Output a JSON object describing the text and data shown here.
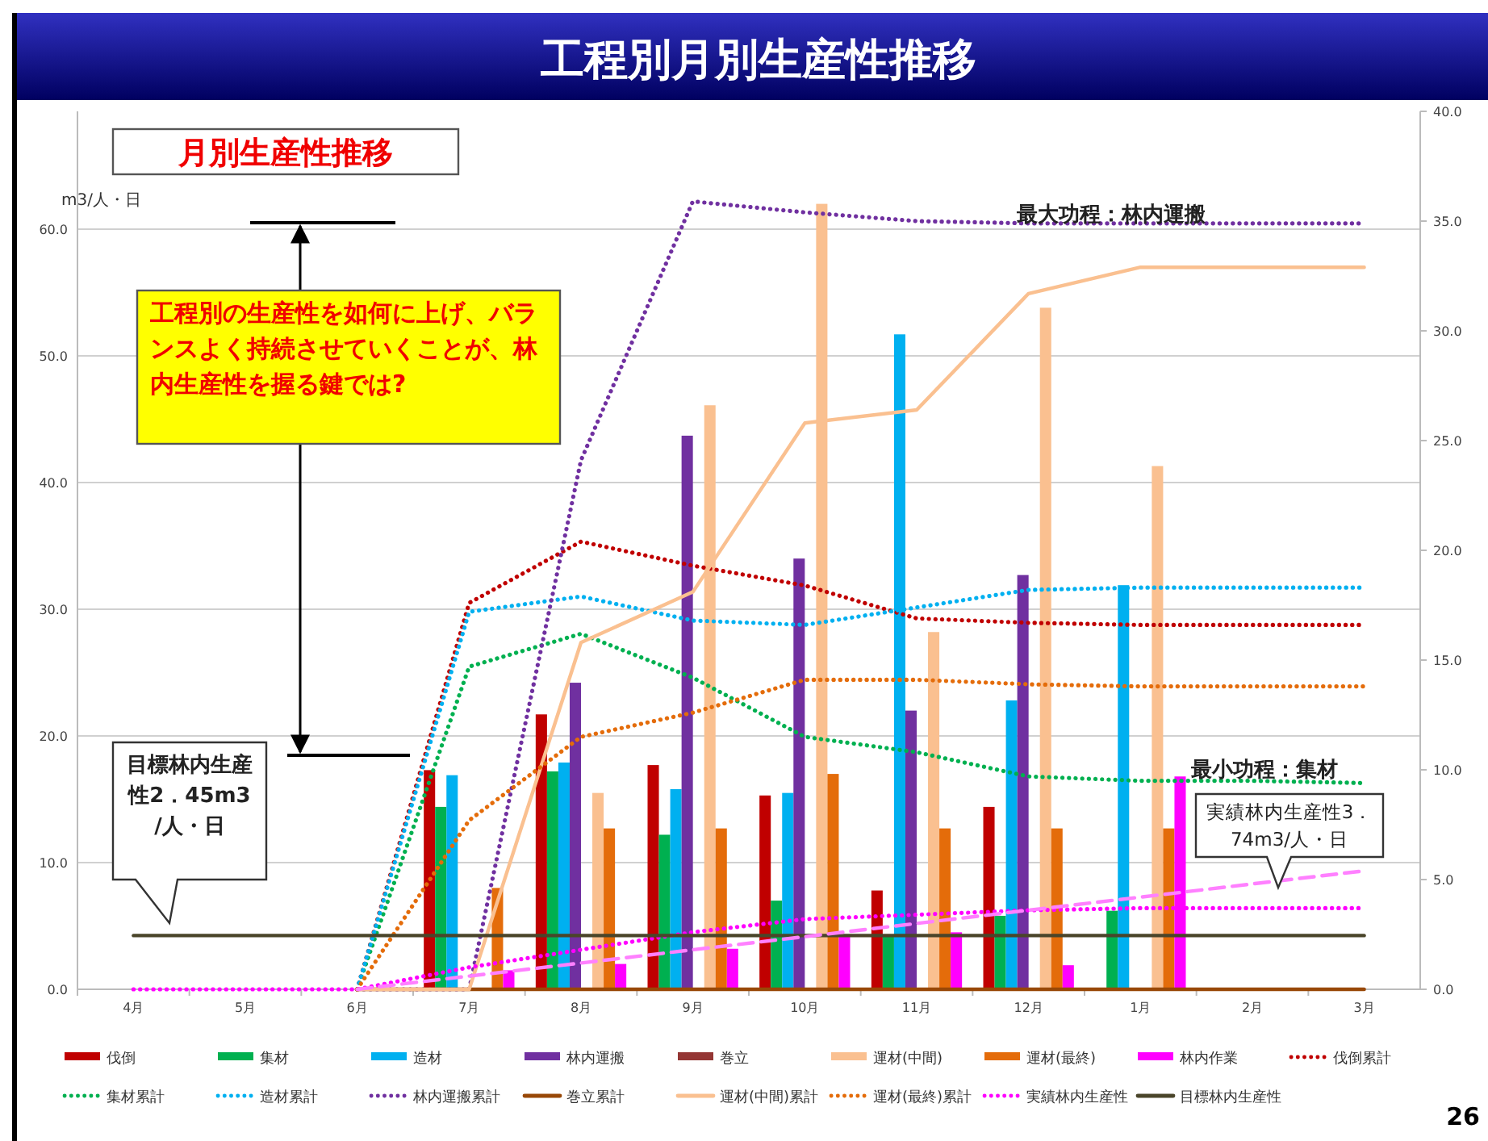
{
  "chart_data": {
    "type": "bar",
    "title": "工程別月別生産性推移",
    "subtitle": "月別生産性推移",
    "ylabel": "m3/人・日",
    "categories": [
      "4月",
      "5月",
      "6月",
      "7月",
      "8月",
      "9月",
      "10月",
      "11月",
      "12月",
      "1月",
      "2月",
      "3月"
    ],
    "ylim": [
      0,
      69.3
    ],
    "yticks": [
      {
        "value": 0,
        "label": "0.0"
      },
      {
        "value": 10,
        "label": "10.0"
      },
      {
        "value": 20,
        "label": "20.0"
      },
      {
        "value": 30,
        "label": "30.0"
      },
      {
        "value": 40,
        "label": "40.0"
      },
      {
        "value": 50,
        "label": "50.0"
      },
      {
        "value": 60,
        "label": "60.0"
      }
    ],
    "y2lim": [
      0,
      40
    ],
    "y2ticks": [
      {
        "value": 0,
        "label": "0.0"
      },
      {
        "value": 5,
        "label": "5.0"
      },
      {
        "value": 10,
        "label": "10.0"
      },
      {
        "value": 15,
        "label": "15.0"
      },
      {
        "value": 20,
        "label": "20.0"
      },
      {
        "value": 25,
        "label": "25.0"
      },
      {
        "value": 30,
        "label": "30.0"
      },
      {
        "value": 35,
        "label": "35.0"
      },
      {
        "value": 40,
        "label": "40.0"
      }
    ],
    "grid": "y",
    "legend": "bottom",
    "series": [
      {
        "name": "伐倒",
        "color": "#c00000",
        "values": [
          null,
          null,
          null,
          17.3,
          21.7,
          17.7,
          15.3,
          7.8,
          14.4,
          null,
          null,
          null
        ]
      },
      {
        "name": "集材",
        "color": "#00b050",
        "values": [
          null,
          null,
          null,
          14.4,
          17.2,
          12.2,
          7.0,
          4.3,
          5.8,
          6.2,
          null,
          null
        ]
      },
      {
        "name": "造材",
        "color": "#00b0f0",
        "values": [
          null,
          null,
          null,
          16.9,
          17.9,
          15.8,
          15.5,
          51.7,
          22.8,
          31.9,
          null,
          null
        ]
      },
      {
        "name": "林内運搬",
        "color": "#7030a0",
        "values": [
          null,
          null,
          null,
          null,
          24.2,
          43.7,
          34.0,
          22.0,
          32.7,
          null,
          null,
          null
        ]
      },
      {
        "name": "巻立",
        "color": "#943634",
        "values": [
          null,
          null,
          null,
          null,
          null,
          null,
          null,
          null,
          null,
          null,
          null,
          null
        ]
      },
      {
        "name": "運材(中間)",
        "color": "#fac090",
        "values": [
          null,
          null,
          null,
          null,
          15.5,
          46.1,
          62.0,
          28.2,
          53.8,
          41.3,
          null,
          null
        ]
      },
      {
        "name": "運材(最終)",
        "color": "#e46c0a",
        "values": [
          null,
          null,
          null,
          8.0,
          12.7,
          12.7,
          17.0,
          12.7,
          12.7,
          12.7,
          null,
          null
        ]
      },
      {
        "name": "林内作業",
        "color": "#ff00ff",
        "values": [
          null,
          null,
          null,
          1.5,
          2.0,
          3.2,
          4.3,
          4.5,
          1.9,
          16.8,
          null,
          null
        ]
      },
      {
        "name": "伐倒累計",
        "type": "line",
        "axis": "y2",
        "line_style": "dotted",
        "color": "#c00000",
        "values": [
          null,
          null,
          0,
          17.6,
          20.4,
          19.3,
          18.4,
          16.9,
          16.7,
          16.6,
          16.6,
          16.6
        ]
      },
      {
        "name": "集材累計",
        "type": "line",
        "axis": "y2",
        "line_style": "dotted",
        "color": "#00b050",
        "values": [
          null,
          null,
          0,
          14.7,
          16.2,
          14.2,
          11.5,
          10.8,
          9.7,
          9.5,
          9.5,
          9.4
        ]
      },
      {
        "name": "造材累計",
        "type": "line",
        "axis": "y2",
        "line_style": "dotted",
        "color": "#00b0f0",
        "values": [
          null,
          null,
          0,
          17.2,
          17.9,
          16.8,
          16.6,
          17.4,
          18.2,
          18.3,
          18.3,
          18.3
        ]
      },
      {
        "name": "林内運搬累計",
        "type": "line",
        "axis": "y2",
        "line_style": "dotted",
        "color": "#7030a0",
        "values": [
          null,
          null,
          0,
          0,
          24.1,
          35.9,
          35.4,
          35.0,
          34.9,
          34.9,
          34.9,
          34.9
        ]
      },
      {
        "name": "巻立累計",
        "type": "line",
        "axis": "y2",
        "line_style": "solid",
        "color": "#984807",
        "values": [
          null,
          null,
          0,
          0,
          0,
          0,
          0,
          0,
          0,
          0,
          0,
          0
        ]
      },
      {
        "name": "運材(中間)累計",
        "type": "line",
        "axis": "y2",
        "line_style": "solid",
        "color": "#fac090",
        "values": [
          null,
          null,
          0,
          0,
          15.8,
          18.1,
          25.8,
          26.4,
          31.7,
          32.9,
          32.9,
          32.9
        ]
      },
      {
        "name": "運材(最終)累計",
        "type": "line",
        "axis": "y2",
        "line_style": "dotted",
        "color": "#e46c0a",
        "values": [
          null,
          null,
          0,
          7.7,
          11.5,
          12.6,
          14.1,
          14.1,
          13.9,
          13.8,
          13.8,
          13.8
        ]
      },
      {
        "name": "実績林内生産性",
        "type": "line",
        "axis": "y2",
        "line_style": "dotted",
        "color": "#ff00ff",
        "values": [
          0,
          0,
          0,
          1.0,
          1.8,
          2.6,
          3.2,
          3.4,
          3.6,
          3.7,
          3.7,
          3.7
        ]
      },
      {
        "name": "目標林内生産性",
        "type": "line",
        "axis": "y2",
        "line_style": "solid",
        "color": "#4a452a",
        "values": [
          2.45,
          2.45,
          2.45,
          2.45,
          2.45,
          2.45,
          2.45,
          2.45,
          2.45,
          2.45,
          2.45,
          2.45
        ]
      },
      {
        "type": "line",
        "axis": "y2",
        "line_style": "dashed",
        "color": "#ff80ff",
        "values": [
          null,
          null,
          0,
          0.6,
          1.2,
          1.8,
          2.4,
          3.0,
          3.6,
          4.2,
          4.8,
          5.4
        ]
      }
    ],
    "annotations": [
      "工程別の生産性を如何に上げ、バランスよく持続させていくことが、林内生産性を握る鍵では?",
      "目標林内生産性2．45m3/人・日",
      "最大功程：林内運搬",
      "最小功程：集材",
      "実績林内生産性3．74m3/人・日",
      "26"
    ]
  }
}
